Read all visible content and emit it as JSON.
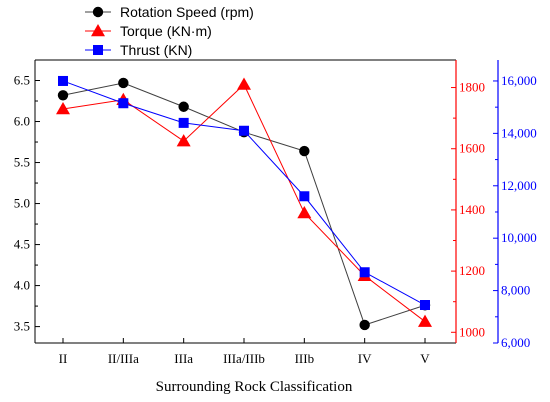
{
  "chart_data": {
    "type": "line",
    "title": "",
    "xlabel": "Surrounding Rock Classification",
    "categories": [
      "II",
      "II/IIIa",
      "IIIa",
      "IIIa/IIIb",
      "IIIb",
      "IV",
      "V"
    ],
    "axes": {
      "left": {
        "ylim": [
          3.3,
          6.75
        ],
        "ticks": [
          "3.5",
          "4.0",
          "4.5",
          "5.0",
          "5.5",
          "6.0",
          "6.5"
        ],
        "tick_values": [
          3.5,
          4.0,
          4.5,
          5.0,
          5.5,
          6.0,
          6.5
        ],
        "color": "#000000"
      },
      "right_inner": {
        "ylim": [
          965,
          1890
        ],
        "ticks": [
          "1000",
          "1200",
          "1400",
          "1600",
          "1800"
        ],
        "tick_values": [
          1000,
          1200,
          1400,
          1600,
          1800
        ],
        "color": "#ff0000"
      },
      "right_outer": {
        "ylim": [
          6000,
          16800
        ],
        "ticks": [
          "6,000",
          "8,000",
          "10,000",
          "12,000",
          "14,000",
          "16,000"
        ],
        "tick_values": [
          6000,
          8000,
          10000,
          12000,
          14000,
          16000
        ],
        "color": "#0000ff"
      }
    },
    "series": [
      {
        "name": "Rotation Speed (rpm)",
        "axis": "left",
        "color": "#000000",
        "line_color": "#404040",
        "marker": "circle",
        "values": [
          6.32,
          6.47,
          6.18,
          5.87,
          5.64,
          3.52,
          3.76
        ]
      },
      {
        "name": "Torque (KN·m)",
        "axis": "right_inner",
        "color": "#ff0000",
        "line_color": "#ff0000",
        "marker": "triangle",
        "values": [
          1730,
          1760,
          1625,
          1810,
          1390,
          1185,
          1035
        ]
      },
      {
        "name": "Thrust (KN)",
        "axis": "right_outer",
        "color": "#0000ff",
        "line_color": "#0000ff",
        "marker": "square",
        "values": [
          16000,
          15150,
          14400,
          14100,
          11600,
          8700,
          7450
        ]
      }
    ],
    "legend": "top-left",
    "grid": false
  }
}
